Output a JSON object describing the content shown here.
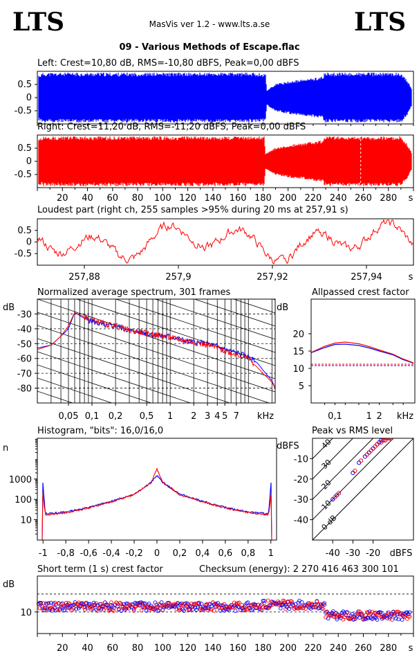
{
  "header": {
    "logo_left": "LTS",
    "logo_right": "LTS",
    "app_title": "MasVis ver 1.2 - www.lts.a.se",
    "file_title": "09 - Various Methods of Escape.flac"
  },
  "colors": {
    "left": "#0000ff",
    "right": "#ff0000",
    "axis": "#000000",
    "dashed_marker": "#ffffff"
  },
  "chart_data": [
    {
      "id": "left-waveform",
      "type": "area",
      "title": "Left: Crest=10,80 dB, RMS=-10,80 dBFS, Peak=0,00 dBFS",
      "series": [
        {
          "name": "Left",
          "color": "#0000ff"
        }
      ],
      "y_ticks": [
        "0.5",
        "0",
        "-0.5"
      ],
      "ylim": [
        -1,
        1
      ],
      "xlim": [
        0,
        300
      ],
      "envelope": [
        [
          0,
          0.9
        ],
        [
          5,
          1
        ],
        [
          60,
          1
        ],
        [
          90,
          1
        ],
        [
          120,
          1
        ],
        [
          150,
          1
        ],
        [
          175,
          1
        ],
        [
          182,
          0.95
        ],
        [
          183,
          0.3
        ],
        [
          190,
          0.55
        ],
        [
          200,
          0.65
        ],
        [
          215,
          0.75
        ],
        [
          228,
          0.85
        ],
        [
          229,
          1
        ],
        [
          290,
          1
        ],
        [
          295,
          0.7
        ],
        [
          300,
          0.2
        ]
      ]
    },
    {
      "id": "right-waveform",
      "type": "area",
      "title": "Right: Crest=11,20 dB, RMS=-11,20 dBFS, Peak=0,00 dBFS",
      "series": [
        {
          "name": "Right",
          "color": "#ff0000"
        }
      ],
      "y_ticks": [
        "0.5",
        "0",
        "-0.5"
      ],
      "x_ticks": [
        "20",
        "40",
        "60",
        "80",
        "100",
        "120",
        "140",
        "160",
        "180",
        "200",
        "220",
        "240",
        "260",
        "280"
      ],
      "x_unit": "s",
      "ylim": [
        -1,
        1
      ],
      "xlim": [
        0,
        300
      ],
      "marker_x": 257.91,
      "envelope": [
        [
          0,
          0.9
        ],
        [
          5,
          1
        ],
        [
          60,
          1
        ],
        [
          90,
          1
        ],
        [
          120,
          1
        ],
        [
          150,
          1
        ],
        [
          181,
          1
        ],
        [
          182,
          0.3
        ],
        [
          190,
          0.55
        ],
        [
          200,
          0.65
        ],
        [
          215,
          0.75
        ],
        [
          228,
          0.85
        ],
        [
          229,
          1
        ],
        [
          290,
          1
        ],
        [
          295,
          0.7
        ],
        [
          300,
          0.2
        ]
      ]
    },
    {
      "id": "loudest-part",
      "type": "line",
      "title": "Loudest part (right ch, 255 samples >95% during 20 ms at 257,91 s)",
      "series": [
        {
          "name": "Right",
          "color": "#ff0000"
        }
      ],
      "y_ticks": [
        "0.5",
        "0",
        "-0.5"
      ],
      "x_ticks": [
        "257,88",
        "257,9",
        "257,92",
        "257,94"
      ],
      "x_tick_values": [
        257.88,
        257.9,
        257.92,
        257.94
      ],
      "x_unit": "s",
      "xlim": [
        257.87,
        257.95
      ],
      "ylim": [
        -1,
        1
      ]
    },
    {
      "id": "avg-spectrum",
      "type": "line",
      "title": "Normalized average spectrum, 301 frames",
      "ylabel": "dB",
      "y_ticks": [
        "-30",
        "-40",
        "-50",
        "-60",
        "-70",
        "-80"
      ],
      "y_tick_values": [
        -30,
        -40,
        -50,
        -60,
        -70,
        -80
      ],
      "x_ticks": [
        "0,05",
        "0,1",
        "0,2",
        "0,5",
        "1",
        "2",
        "3",
        "4",
        "5",
        "7"
      ],
      "x_tick_values": [
        0.05,
        0.1,
        0.2,
        0.5,
        1,
        2,
        3,
        4,
        5,
        7
      ],
      "x_unit": "kHz",
      "ylim": [
        -90,
        -20
      ],
      "xlim": [
        0.02,
        22
      ],
      "x": [
        0.02,
        0.03,
        0.04,
        0.05,
        0.06,
        0.08,
        0.1,
        0.15,
        0.2,
        0.3,
        0.5,
        0.8,
        1,
        1.5,
        2,
        3,
        4,
        5,
        7,
        10,
        13,
        16,
        20,
        22
      ],
      "series": [
        {
          "name": "Left",
          "color": "#0000ff",
          "values": [
            -53,
            -51,
            -45,
            -40,
            -29,
            -33,
            -35,
            -38,
            -38,
            -41,
            -43,
            -45,
            -45,
            -48,
            -49,
            -50,
            -52,
            -54,
            -56,
            -59,
            -63,
            -69,
            -75,
            -80
          ]
        },
        {
          "name": "Right",
          "color": "#ff0000",
          "values": [
            -54,
            -51,
            -45,
            -38,
            -29,
            -32,
            -34,
            -37,
            -38,
            -41,
            -43,
            -45,
            -46,
            -48,
            -49,
            -51,
            -53,
            -55,
            -57,
            -60,
            -66,
            -71,
            -76,
            -80
          ]
        }
      ]
    },
    {
      "id": "allpassed-crest",
      "type": "line",
      "title": "Allpassed crest factor",
      "ylabel": "dB",
      "y_ticks": [
        "20",
        "15",
        "10",
        "5"
      ],
      "y_tick_values": [
        20,
        15,
        10,
        5
      ],
      "x_ticks": [
        "0,1",
        "1",
        "2",
        "kHz"
      ],
      "x_tick_values": [
        0.1,
        1,
        2
      ],
      "xlim": [
        0.02,
        22
      ],
      "ylim": [
        0,
        30
      ],
      "x": [
        0.02,
        0.05,
        0.1,
        0.2,
        0.5,
        1,
        2,
        5,
        10,
        20
      ],
      "series": [
        {
          "name": "Left",
          "color": "#0000ff",
          "values": [
            14.5,
            16,
            16.9,
            17,
            16.6,
            15.9,
            15,
            13.9,
            12.5,
            11.5
          ]
        },
        {
          "name": "Right",
          "color": "#ff0000",
          "values": [
            14.6,
            16.4,
            17.3,
            17.6,
            17.1,
            16.3,
            15.3,
            14.1,
            12.7,
            11.6
          ]
        }
      ],
      "reference_lines": [
        {
          "color": "#0000ff",
          "value": 10.8
        },
        {
          "color": "#ff0000",
          "value": 11.2
        }
      ]
    },
    {
      "id": "histogram",
      "type": "line",
      "title": "Histogram, \"bits\": 16,0/16,0",
      "ylabel": "n",
      "y_ticks": [
        "1000",
        "100",
        "10"
      ],
      "y_tick_values": [
        1000,
        100,
        10
      ],
      "x_ticks": [
        "-1",
        "-0,8",
        "-0,6",
        "-0,4",
        "-0,2",
        "0",
        "0,2",
        "0,4",
        "0,6",
        "0,8",
        "1"
      ],
      "x_tick_values": [
        -1,
        -0.8,
        -0.6,
        -0.4,
        -0.2,
        0,
        0.2,
        0.4,
        0.6,
        0.8,
        1
      ],
      "xlim": [
        -1.05,
        1.05
      ],
      "ylim": [
        1,
        100000
      ],
      "x": [
        -1,
        -0.98,
        -0.96,
        -0.8,
        -0.6,
        -0.4,
        -0.2,
        -0.05,
        0,
        0.05,
        0.2,
        0.4,
        0.6,
        0.8,
        0.96,
        0.98,
        1
      ],
      "series": [
        {
          "name": "Left",
          "color": "#0000ff",
          "values": [
            500,
            20,
            20,
            24,
            40,
            80,
            180,
            700,
            1500,
            700,
            180,
            80,
            40,
            24,
            20,
            20,
            500
          ]
        },
        {
          "name": "Right",
          "color": "#ff0000",
          "values": [
            150,
            18,
            18,
            22,
            38,
            75,
            170,
            680,
            3000,
            680,
            170,
            75,
            38,
            22,
            18,
            18,
            150
          ]
        }
      ]
    },
    {
      "id": "peak-vs-rms",
      "type": "scatter",
      "title": "Peak vs RMS level",
      "ylabel": "dBFS",
      "xlabel_unit": "dBFS",
      "y_ticks": [
        "-10",
        "-20",
        "-30",
        "-40"
      ],
      "y_tick_values": [
        -10,
        -20,
        -30,
        -40
      ],
      "x_ticks": [
        "-40",
        "-30",
        "-20"
      ],
      "x_tick_values": [
        -40,
        -30,
        -20
      ],
      "xlim": [
        -50,
        0
      ],
      "ylim": [
        -50,
        0
      ],
      "crest_lines": [
        "40",
        "30",
        "20",
        "10",
        "0 dB"
      ],
      "crest_line_values": [
        40,
        30,
        20,
        10,
        0
      ],
      "series": [
        {
          "name": "Left",
          "color": "#0000ff",
          "x": [
            -40,
            -38,
            -30,
            -27,
            -24,
            -22,
            -20,
            -18,
            -17,
            -16,
            -15,
            -14,
            -13,
            -12
          ],
          "y": [
            -30,
            -28,
            -17,
            -12,
            -9,
            -7,
            -5,
            -3,
            -2,
            -1,
            -1,
            -1,
            0,
            0
          ]
        },
        {
          "name": "Right",
          "color": "#ff0000",
          "x": [
            -39,
            -37,
            -29,
            -26,
            -23,
            -21,
            -19,
            -18,
            -16,
            -15,
            -14,
            -13,
            -12,
            -11
          ],
          "y": [
            -29,
            -27,
            -16,
            -11,
            -8,
            -6,
            -4,
            -3,
            -2,
            -1,
            -1,
            0,
            0,
            0
          ]
        }
      ]
    },
    {
      "id": "short-term-crest",
      "type": "scatter",
      "title": "Short term (1 s) crest factor",
      "ylabel": "dB",
      "y_ticks": [
        "10"
      ],
      "y_tick_values": [
        10
      ],
      "x_ticks": [
        "20",
        "40",
        "60",
        "80",
        "100",
        "120",
        "140",
        "160",
        "180",
        "200",
        "220",
        "240",
        "260",
        "280"
      ],
      "x_unit": "s",
      "xlim": [
        0,
        300
      ],
      "ylim": [
        4,
        20
      ],
      "dashed_levels": [
        15,
        10
      ],
      "level_by_segment": [
        {
          "from": 0,
          "to": 180,
          "value": 11.5
        },
        {
          "from": 180,
          "to": 230,
          "value": 12
        },
        {
          "from": 230,
          "to": 300,
          "value": 9
        }
      ]
    }
  ],
  "checksum": {
    "text": "Checksum (energy):  2 270 416 463 300 101"
  }
}
